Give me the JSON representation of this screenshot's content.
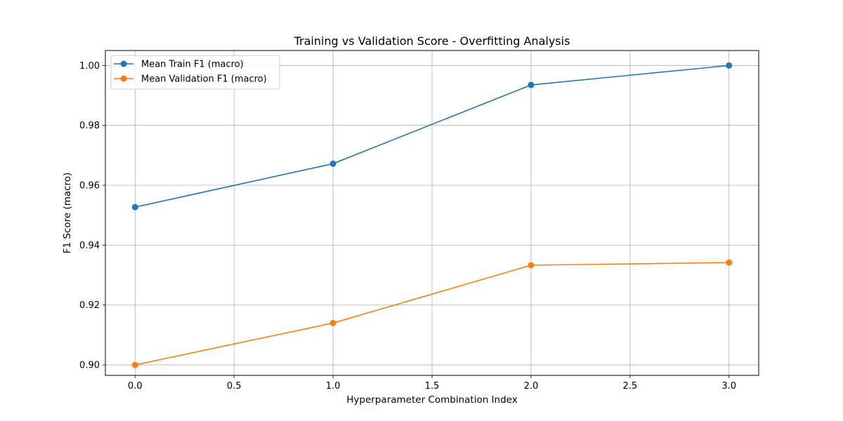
{
  "chart_data": {
    "type": "line",
    "title": "Training vs Validation Score - Overfitting Analysis",
    "xlabel": "Hyperparameter Combination Index",
    "ylabel": "F1 Score (macro)",
    "xlim": [
      -0.15,
      3.15
    ],
    "ylim": [
      0.8965,
      1.005
    ],
    "xticks": [
      0.0,
      0.5,
      1.0,
      1.5,
      2.0,
      2.5,
      3.0
    ],
    "xtick_labels": [
      "0.0",
      "0.5",
      "1.0",
      "1.5",
      "2.0",
      "2.5",
      "3.0"
    ],
    "yticks": [
      0.9,
      0.92,
      0.94,
      0.96,
      0.98,
      1.0
    ],
    "ytick_labels": [
      "0.90",
      "0.92",
      "0.94",
      "0.96",
      "0.98",
      "1.00"
    ],
    "grid": true,
    "legend_position": "top-left",
    "x": [
      0,
      1,
      2,
      3
    ],
    "series": [
      {
        "name": "Mean Train F1 (macro)",
        "color": "#1f77b4",
        "marker": "circle",
        "values": [
          0.9527,
          0.9672,
          0.9935,
          1.0
        ]
      },
      {
        "name": "Mean Validation F1 (macro)",
        "color": "#ff7f0e",
        "marker": "circle",
        "values": [
          0.9,
          0.914,
          0.9333,
          0.9342
        ]
      }
    ]
  }
}
